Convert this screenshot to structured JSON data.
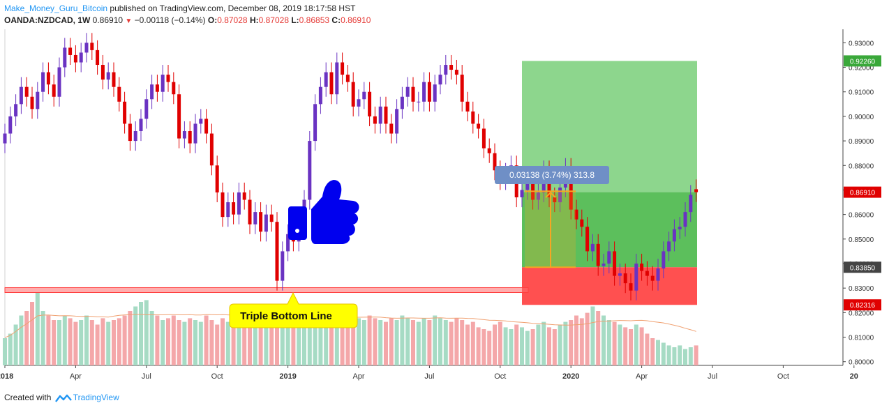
{
  "header": {
    "author": "Make_Money_Guru_Bitcoin",
    "published": "published on TradingView.com, December 08, 2019 18:17:58 HST",
    "symbol": "OANDA:NZDCAD, 1W",
    "price": "0.86910",
    "change": "−0.00118 (−0.14%)",
    "o_label": "O:",
    "o": "0.87028",
    "h_label": "H:",
    "h": "0.87028",
    "l_label": "L:",
    "l": "0.86853",
    "c_label": "C:",
    "c": "0.86910"
  },
  "footer": {
    "created_with": "Created with",
    "brand": "TradingView"
  },
  "colors": {
    "up": "#6a33c2",
    "down": "#e00000",
    "vol_up": "#a6dbc4",
    "vol_down": "#f4a7a9",
    "ma": "#f0a070",
    "target": "#5cbf5c",
    "stop": "#ff5050",
    "support": "#ff6b6b",
    "measure": "#f5a623",
    "thumb": "#0000ee"
  },
  "annotations": {
    "thumbs_up": "thumbs-up-icon",
    "callout": "Triple Bottom Line",
    "measure_label": "0.03138 (3.74%) 313.8",
    "target_price": "0.92260",
    "current_price": "0.86910",
    "entry_price": "0.83850",
    "stop_price": "0.82316",
    "support_range": [
      0.8282,
      0.8302
    ],
    "measure_range": [
      0.8385,
      0.8695
    ]
  },
  "chart_data": {
    "type": "candlestick",
    "title": "",
    "ylim": [
      0.7985,
      0.9355
    ],
    "y_ticks": [
      0.93,
      0.92,
      0.91,
      0.9,
      0.89,
      0.88,
      0.87,
      0.86,
      0.85,
      0.84,
      0.83,
      0.82,
      0.81,
      0.8
    ],
    "y_tick_labels": [
      "0.93000",
      "0.92000",
      "0.91000",
      "0.90000",
      "0.89000",
      "0.88000",
      "0.87000",
      "0.86000",
      "0.85000",
      "0.84000",
      "0.83000",
      "0.82000",
      "0.81000",
      "0.80000"
    ],
    "x_ticks": [
      {
        "label": "2018",
        "bold": true,
        "week": 0
      },
      {
        "label": "Apr",
        "bold": false,
        "week": 13
      },
      {
        "label": "Jul",
        "bold": false,
        "week": 26
      },
      {
        "label": "Oct",
        "bold": false,
        "week": 39
      },
      {
        "label": "2019",
        "bold": true,
        "week": 52
      },
      {
        "label": "Apr",
        "bold": false,
        "week": 65
      },
      {
        "label": "Jul",
        "bold": false,
        "week": 78
      },
      {
        "label": "Oct",
        "bold": false,
        "week": 91
      },
      {
        "label": "2020",
        "bold": true,
        "week": 104
      },
      {
        "label": "Apr",
        "bold": false,
        "week": 117
      },
      {
        "label": "Jul",
        "bold": false,
        "week": 130
      },
      {
        "label": "Oct",
        "bold": false,
        "week": 143
      },
      {
        "label": "20",
        "bold": true,
        "week": 156
      }
    ],
    "close": [
      0.893,
      0.9,
      0.905,
      0.912,
      0.908,
      0.903,
      0.91,
      0.918,
      0.913,
      0.908,
      0.92,
      0.928,
      0.925,
      0.922,
      0.926,
      0.93,
      0.927,
      0.921,
      0.915,
      0.918,
      0.912,
      0.906,
      0.897,
      0.89,
      0.894,
      0.899,
      0.907,
      0.913,
      0.91,
      0.917,
      0.914,
      0.909,
      0.891,
      0.894,
      0.889,
      0.897,
      0.899,
      0.893,
      0.88,
      0.869,
      0.859,
      0.865,
      0.86,
      0.869,
      0.866,
      0.856,
      0.861,
      0.853,
      0.86,
      0.857,
      0.833,
      0.845,
      0.852,
      0.849,
      0.858,
      0.866,
      0.89,
      0.905,
      0.912,
      0.918,
      0.909,
      0.922,
      0.917,
      0.914,
      0.904,
      0.907,
      0.91,
      0.9,
      0.897,
      0.904,
      0.897,
      0.893,
      0.903,
      0.908,
      0.912,
      0.906,
      0.906,
      0.914,
      0.906,
      0.913,
      0.917,
      0.921,
      0.919,
      0.917,
      0.906,
      0.902,
      0.897,
      0.895,
      0.887,
      0.885,
      0.878,
      0.874,
      0.877,
      0.88,
      0.867,
      0.87,
      0.875,
      0.866,
      0.869,
      0.878,
      0.867,
      0.865,
      0.871,
      0.879,
      0.862,
      0.858,
      0.855,
      0.845,
      0.848,
      0.839,
      0.84,
      0.845,
      0.835,
      0.836,
      0.832,
      0.829,
      0.84,
      0.837,
      0.835,
      0.833,
      0.838,
      0.845,
      0.849,
      0.854,
      0.855,
      0.861,
      0.868,
      0.8691
    ],
    "open": [
      0.889,
      0.893,
      0.9,
      0.905,
      0.912,
      0.908,
      0.903,
      0.91,
      0.918,
      0.913,
      0.908,
      0.92,
      0.928,
      0.925,
      0.922,
      0.926,
      0.93,
      0.927,
      0.921,
      0.915,
      0.918,
      0.912,
      0.906,
      0.897,
      0.89,
      0.894,
      0.899,
      0.907,
      0.913,
      0.91,
      0.917,
      0.914,
      0.909,
      0.891,
      0.894,
      0.889,
      0.897,
      0.899,
      0.893,
      0.88,
      0.869,
      0.859,
      0.865,
      0.86,
      0.869,
      0.866,
      0.856,
      0.861,
      0.853,
      0.86,
      0.857,
      0.833,
      0.845,
      0.852,
      0.849,
      0.858,
      0.866,
      0.89,
      0.905,
      0.912,
      0.918,
      0.909,
      0.922,
      0.917,
      0.914,
      0.904,
      0.907,
      0.91,
      0.9,
      0.897,
      0.904,
      0.897,
      0.893,
      0.903,
      0.908,
      0.912,
      0.906,
      0.906,
      0.914,
      0.906,
      0.913,
      0.917,
      0.921,
      0.919,
      0.917,
      0.906,
      0.902,
      0.897,
      0.895,
      0.887,
      0.885,
      0.878,
      0.874,
      0.877,
      0.88,
      0.867,
      0.87,
      0.875,
      0.866,
      0.869,
      0.878,
      0.867,
      0.865,
      0.871,
      0.879,
      0.862,
      0.858,
      0.855,
      0.845,
      0.848,
      0.839,
      0.84,
      0.845,
      0.835,
      0.836,
      0.832,
      0.829,
      0.84,
      0.837,
      0.835,
      0.833,
      0.838,
      0.845,
      0.849,
      0.854,
      0.855,
      0.861,
      0.8703
    ],
    "volume": [
      0.3,
      0.35,
      0.45,
      0.55,
      0.6,
      0.7,
      0.8,
      0.6,
      0.55,
      0.5,
      0.5,
      0.55,
      0.52,
      0.48,
      0.5,
      0.55,
      0.5,
      0.45,
      0.52,
      0.48,
      0.5,
      0.52,
      0.55,
      0.6,
      0.65,
      0.7,
      0.72,
      0.6,
      0.55,
      0.5,
      0.52,
      0.55,
      0.5,
      0.48,
      0.52,
      0.5,
      0.48,
      0.55,
      0.5,
      0.45,
      0.52,
      0.48,
      0.5,
      0.55,
      0.52,
      0.5,
      0.48,
      0.52,
      0.5,
      0.55,
      0.58,
      0.6,
      0.55,
      0.52,
      0.48,
      0.5,
      0.52,
      0.55,
      0.5,
      0.48,
      0.5,
      0.55,
      0.52,
      0.5,
      0.48,
      0.52,
      0.5,
      0.55,
      0.52,
      0.5,
      0.48,
      0.52,
      0.5,
      0.55,
      0.52,
      0.5,
      0.48,
      0.52,
      0.5,
      0.55,
      0.52,
      0.5,
      0.48,
      0.52,
      0.5,
      0.45,
      0.48,
      0.42,
      0.4,
      0.38,
      0.45,
      0.48,
      0.42,
      0.4,
      0.45,
      0.42,
      0.38,
      0.4,
      0.45,
      0.48,
      0.42,
      0.4,
      0.45,
      0.48,
      0.5,
      0.55,
      0.52,
      0.58,
      0.65,
      0.6,
      0.55,
      0.5,
      0.48,
      0.45,
      0.42,
      0.4,
      0.45,
      0.42,
      0.35,
      0.3,
      0.28,
      0.25,
      0.22,
      0.2,
      0.22,
      0.18,
      0.2,
      0.22
    ]
  }
}
